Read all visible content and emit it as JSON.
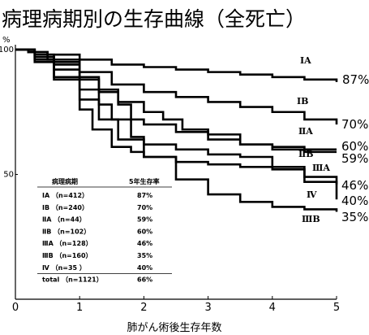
{
  "title": "病理病期別の生存曲線（全死亡）",
  "chart_data": {
    "type": "line",
    "xlabel": "肺がん術後生存年数",
    "y_unit": "%",
    "xlim": [
      0,
      5
    ],
    "ylim": [
      0,
      100
    ],
    "xticks": [
      "0",
      "1",
      "2",
      "3",
      "4",
      "5"
    ],
    "yticks": [
      "100",
      "50"
    ],
    "series": [
      {
        "name": "IA",
        "end_label": "87%",
        "x": [
          0,
          0.2,
          0.5,
          1,
          1.5,
          2,
          2.5,
          3,
          3.5,
          4,
          4.5,
          5
        ],
        "y": [
          100,
          99,
          98,
          96,
          94,
          93,
          92,
          91,
          90,
          89,
          88,
          87
        ]
      },
      {
        "name": "IB",
        "end_label": "70%",
        "x": [
          0,
          0.2,
          0.5,
          1,
          1.5,
          2,
          2.5,
          3,
          3.5,
          4,
          4.5,
          5
        ],
        "y": [
          100,
          99,
          96,
          91,
          86,
          83,
          81,
          79,
          77,
          75,
          72,
          70
        ]
      },
      {
        "name": "ⅡA",
        "end_label": "59%",
        "x": [
          0,
          0.3,
          0.6,
          1,
          1.3,
          1.6,
          2,
          2.3,
          2.6,
          3,
          3.5,
          4,
          4.5,
          5
        ],
        "y": [
          100,
          98,
          95,
          89,
          84,
          79,
          75,
          72,
          68,
          66,
          62,
          60,
          59,
          59
        ]
      },
      {
        "name": "ⅡB",
        "end_label": "60%",
        "x": [
          0,
          0.3,
          0.6,
          1,
          1.3,
          1.6,
          1.8,
          2,
          2.5,
          3,
          3.5,
          4,
          4.5,
          5
        ],
        "y": [
          100,
          97,
          94,
          88,
          83,
          78,
          72,
          70,
          67,
          64,
          62,
          61,
          60,
          60
        ]
      },
      {
        "name": "ⅢA",
        "end_label": "46%",
        "x": [
          0,
          0.3,
          0.6,
          1,
          1.3,
          1.5,
          1.8,
          2,
          2.5,
          3,
          3.5,
          4,
          4.5,
          5
        ],
        "y": [
          100,
          96,
          92,
          84,
          78,
          72,
          65,
          62,
          60,
          58,
          57,
          53,
          49,
          46
        ]
      },
      {
        "name": "Ⅳ",
        "end_label": "40%",
        "x": [
          0,
          0.3,
          0.6,
          1,
          1.2,
          1.5,
          1.8,
          2,
          2.5,
          3,
          3.5,
          4,
          4.5,
          5
        ],
        "y": [
          100,
          95,
          88,
          76,
          68,
          61,
          59,
          57,
          55,
          54,
          53,
          52,
          47,
          40
        ]
      },
      {
        "name": "ⅢB",
        "end_label": "35%",
        "x": [
          0,
          0.3,
          0.6,
          1,
          1.3,
          1.6,
          2,
          2.5,
          3,
          3.5,
          4,
          4.5,
          5
        ],
        "y": [
          100,
          96,
          89,
          80,
          72,
          64,
          57,
          48,
          42,
          39,
          37,
          36,
          35
        ]
      }
    ],
    "table": {
      "headers": [
        "病理病期",
        "5年生存率"
      ],
      "rows": [
        [
          "ⅠA （n=412）",
          "87%"
        ],
        [
          "ⅠB （n=240）",
          "70%"
        ],
        [
          "ⅡA （n=44）",
          "59%"
        ],
        [
          "ⅡB （n=102）",
          "60%"
        ],
        [
          "ⅢA （n=128）",
          "46%"
        ],
        [
          "ⅢB （n=160）",
          "35%"
        ],
        [
          "Ⅳ （n=35 ）",
          "40%"
        ],
        [
          "total （n=1121）",
          "66%"
        ]
      ]
    }
  }
}
